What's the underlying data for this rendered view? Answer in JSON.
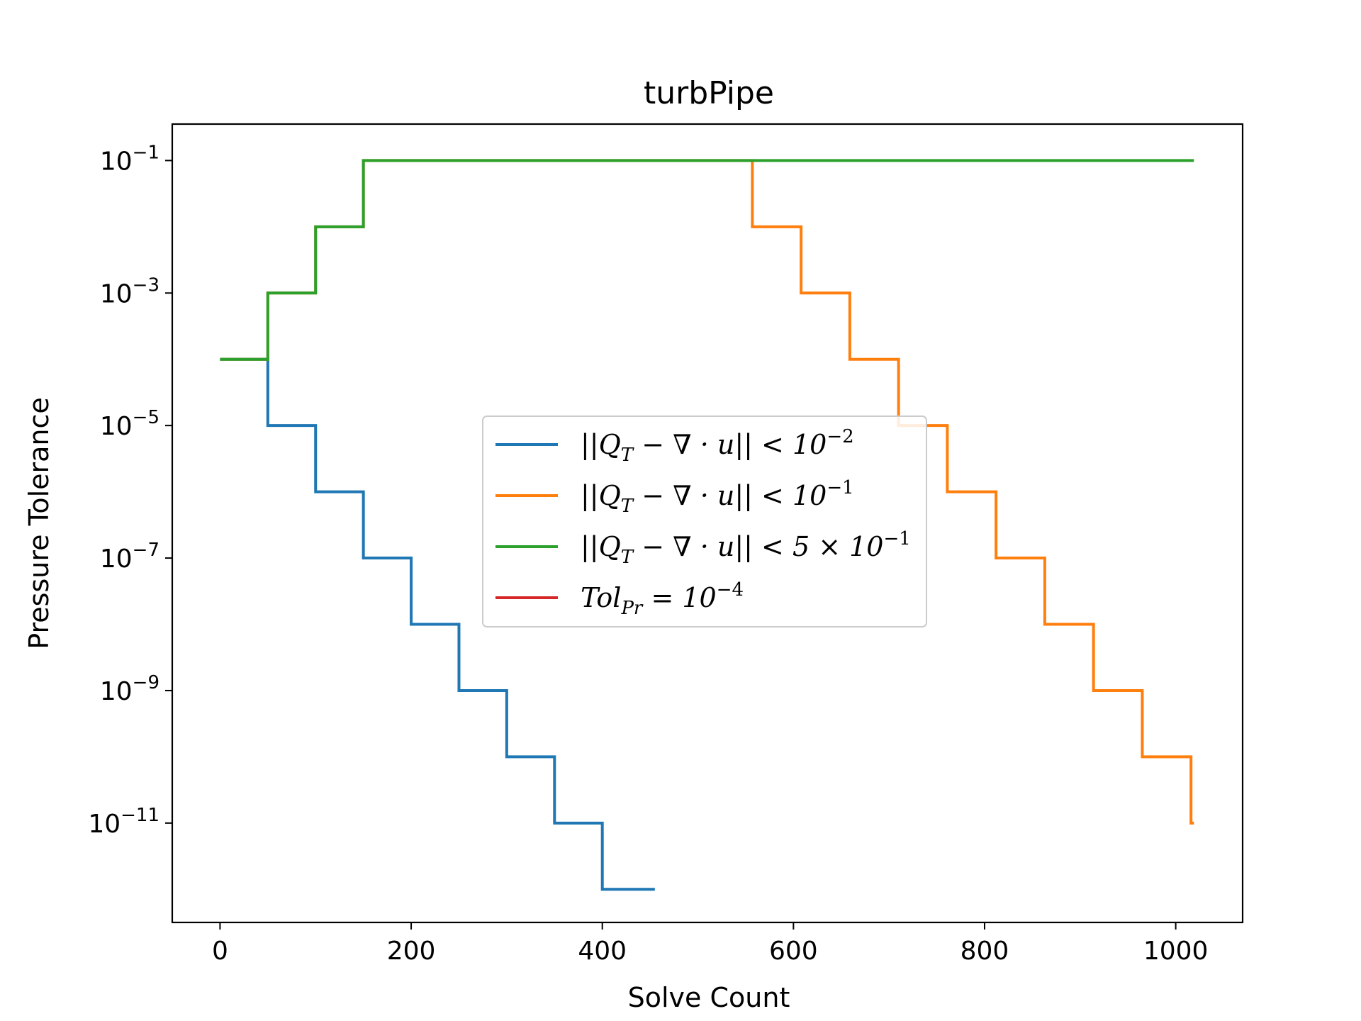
{
  "chart_data": {
    "type": "line",
    "step": "post",
    "title": "turbPipe",
    "xlabel": "Solve Count",
    "ylabel": "Pressure Tolerance",
    "xlim": [
      -50,
      1070
    ],
    "ylim_log10": [
      -12.5,
      -0.45
    ],
    "yscale": "log",
    "xticks": [
      0,
      200,
      400,
      600,
      800,
      1000
    ],
    "xtick_labels": [
      "0",
      "200",
      "400",
      "600",
      "800",
      "1000"
    ],
    "yticks_log10": [
      -1,
      -3,
      -5,
      -7,
      -9,
      -11
    ],
    "ytick_labels": [
      {
        "base": "10",
        "exp": "−1"
      },
      {
        "base": "10",
        "exp": "−3"
      },
      {
        "base": "10",
        "exp": "−5"
      },
      {
        "base": "10",
        "exp": "−7"
      },
      {
        "base": "10",
        "exp": "−9"
      },
      {
        "base": "10",
        "exp": "−11"
      }
    ],
    "legend_position": "center",
    "series": [
      {
        "name": "||Q_T − ∇·u|| < 10^−2",
        "legend": {
          "pre": "||Q",
          "sub": "T",
          "mid": " − ∇ · u|| < 10",
          "sup": "−2",
          "post": ""
        },
        "color": "#1f77b4",
        "x": [
          0,
          50,
          100,
          150,
          200,
          250,
          300,
          350,
          400,
          455
        ],
        "y_log10": [
          -4,
          -5,
          -6,
          -7,
          -8,
          -9,
          -10,
          -11,
          -12,
          -12
        ]
      },
      {
        "name": "||Q_T − ∇·u|| < 10^−1",
        "legend": {
          "pre": "||Q",
          "sub": "T",
          "mid": " − ∇ · u|| < 10",
          "sup": "−1",
          "post": ""
        },
        "color": "#ff7f0e",
        "x": [
          0,
          50,
          100,
          150,
          557,
          608,
          659,
          710,
          761,
          812,
          863,
          914,
          965,
          1016,
          1019
        ],
        "y_log10": [
          -4,
          -3,
          -2,
          -1,
          -2,
          -3,
          -4,
          -5,
          -6,
          -7,
          -8,
          -9,
          -10,
          -11,
          -11
        ]
      },
      {
        "name": "||Q_T − ∇·u|| < 5 × 10^−1",
        "legend": {
          "pre": "||Q",
          "sub": "T",
          "mid": " − ∇ · u|| < 5 × 10",
          "sup": "−1",
          "post": ""
        },
        "color": "#2ca02c",
        "x": [
          0,
          50,
          100,
          150,
          1019
        ],
        "y_log10": [
          -4,
          -3,
          -2,
          -1,
          -1
        ]
      },
      {
        "name": "Tol_Pr = 10^−4",
        "legend": {
          "pre": "Tol",
          "sub": "Pr",
          "mid": " = 10",
          "sup": "−4",
          "post": ""
        },
        "color": "#d62728",
        "x": [],
        "y_log10": []
      }
    ]
  }
}
